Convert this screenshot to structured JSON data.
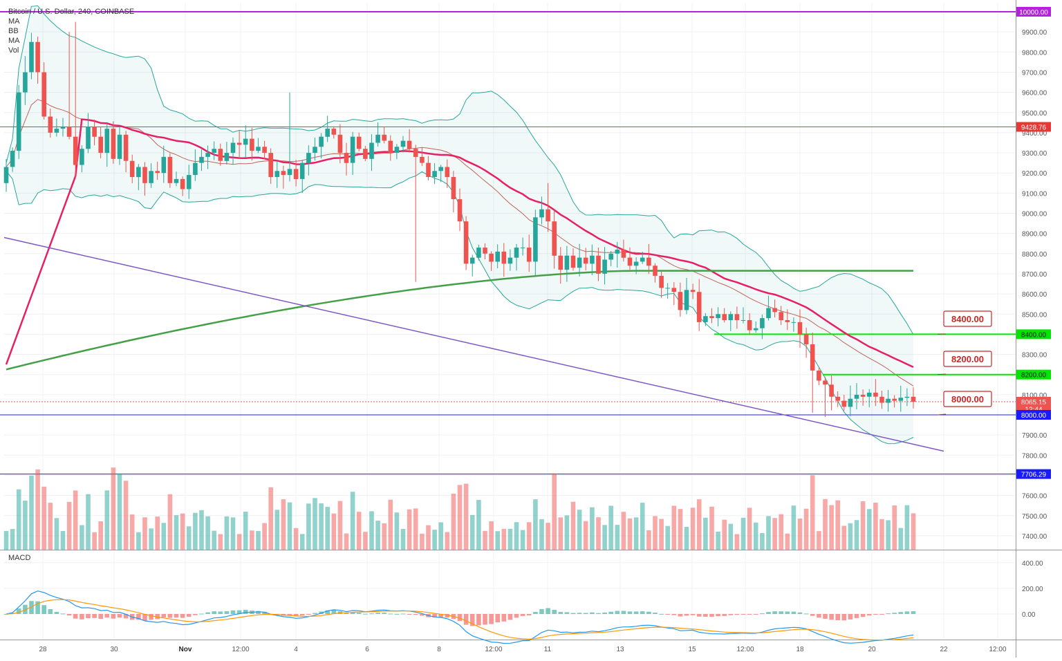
{
  "header": {
    "title": "Bitcoin / U.S. Dollar, 240, COINBASE",
    "indicators": [
      "MA",
      "BB",
      "MA",
      "Vol"
    ]
  },
  "macd_label": "MACD",
  "colors": {
    "up": "#26a69a",
    "down": "#ef5350",
    "ma_fast": "#e91e63",
    "ma_slow": "#43a047",
    "trend": "#7e57c2",
    "bb": "#26a69a",
    "level_green": "#00e600",
    "level_blue": "#1a1aff",
    "level_red": "#e53935",
    "level_purple": "#b620e0",
    "macd_line": "#2196f3",
    "signal_line": "#ff9800"
  },
  "price_axis": {
    "ticks": [
      "9900.00",
      "9800.00",
      "9700.00",
      "9600.00",
      "9500.00",
      "9400.00",
      "9300.00",
      "9200.00",
      "9100.00",
      "9000.00",
      "8900.00",
      "8800.00",
      "8700.00",
      "8600.00",
      "8500.00",
      "8300.00",
      "8100.00",
      "7900.00",
      "7800.00",
      "7700.00",
      "7600.00",
      "7500.00",
      "7400.00"
    ]
  },
  "macd_axis": {
    "ticks": [
      "400.00",
      "200.00",
      "0.00"
    ]
  },
  "time_axis": {
    "labels": [
      "28",
      "30",
      "Nov",
      "12:00",
      "4",
      "6",
      "8",
      "12:00",
      "11",
      "13",
      "15",
      "12:00",
      "18",
      "20",
      "22",
      "12:00"
    ]
  },
  "price_tags": [
    {
      "text": "10000.00",
      "value": 10000,
      "color": "#b620e0"
    },
    {
      "text": "9428.76",
      "value": 9428.76,
      "color": "#e53935"
    },
    {
      "text": "8400.00",
      "value": 8400,
      "color": "#00e600",
      "dark": true
    },
    {
      "text": "8200.00",
      "value": 8200,
      "color": "#00e600",
      "dark": true
    },
    {
      "text": "8065.15",
      "value": 8065.15,
      "color": "#ef5350"
    },
    {
      "text": "12:44",
      "value": 8029,
      "color": "#ef5350"
    },
    {
      "text": "8000.00",
      "value": 8000,
      "color": "#1a1aff"
    },
    {
      "text": "7706.29",
      "value": 7706.29,
      "color": "#1a1aff"
    }
  ],
  "callouts": [
    {
      "text": "8400.00",
      "value": 8400
    },
    {
      "text": "8200.00",
      "value": 8200
    },
    {
      "text": "8000.00",
      "value": 8000
    }
  ],
  "chart_data": {
    "type": "candlestick",
    "symbol": "Bitcoin / U.S. Dollar",
    "interval": "240",
    "exchange": "COINBASE",
    "y_range": [
      7300,
      10050
    ],
    "levels": [
      {
        "value": 10000,
        "style": "horizontal",
        "color": "purple"
      },
      {
        "value": 9428.76,
        "style": "horizontal",
        "color": "red"
      },
      {
        "value": 8400,
        "style": "segment",
        "color": "green"
      },
      {
        "value": 8200,
        "style": "segment",
        "color": "green"
      },
      {
        "value": 8000,
        "style": "horizontal",
        "color": "blue"
      },
      {
        "value": 7706.29,
        "style": "horizontal",
        "color": "blue"
      }
    ],
    "last_price": 8065.15,
    "trendline": {
      "from": [
        0,
        8880
      ],
      "to": [
        1.02,
        7820
      ]
    },
    "closes": [
      9230,
      9310,
      9600,
      9700,
      9850,
      9700,
      9480,
      9400,
      9420,
      9430,
      9380,
      9240,
      9320,
      9430,
      9380,
      9300,
      9420,
      9270,
      9390,
      9260,
      9180,
      9230,
      9150,
      9210,
      9200,
      9280,
      9150,
      9170,
      9120,
      9190,
      9250,
      9280,
      9300,
      9320,
      9260,
      9300,
      9350,
      9340,
      9370,
      9310,
      9330,
      9300,
      9180,
      9210,
      9190,
      9220,
      9170,
      9250,
      9300,
      9330,
      9380,
      9420,
      9390,
      9300,
      9250,
      9380,
      9320,
      9270,
      9350,
      9390,
      9360,
      9300,
      9330,
      9360,
      9320,
      9280,
      9250,
      9180,
      9210,
      9230,
      9180,
      9070,
      8960,
      8750,
      8780,
      8830,
      8800,
      8760,
      8810,
      8750,
      8780,
      8830,
      8830,
      8760,
      8980,
      9020,
      8960,
      8790,
      8720,
      8790,
      8730,
      8780,
      8750,
      8790,
      8700,
      8770,
      8800,
      8820,
      8780,
      8740,
      8760,
      8780,
      8740,
      8690,
      8630,
      8630,
      8610,
      8520,
      8620,
      8610,
      8460,
      8490,
      8480,
      8500,
      8470,
      8500,
      8470,
      8470,
      8420,
      8430,
      8480,
      8530,
      8510,
      8470,
      8460,
      8460,
      8400,
      8350,
      8220,
      8170,
      8150,
      8090,
      8070,
      8040,
      8080,
      8100,
      8090,
      8110,
      8090,
      8060,
      8080,
      8070,
      8085,
      8090,
      8065
    ],
    "volume": {
      "ylim": [
        0,
        1
      ]
    },
    "macd": {
      "ylim": [
        -200,
        450
      ],
      "ticks": [
        400,
        200,
        0
      ]
    }
  }
}
